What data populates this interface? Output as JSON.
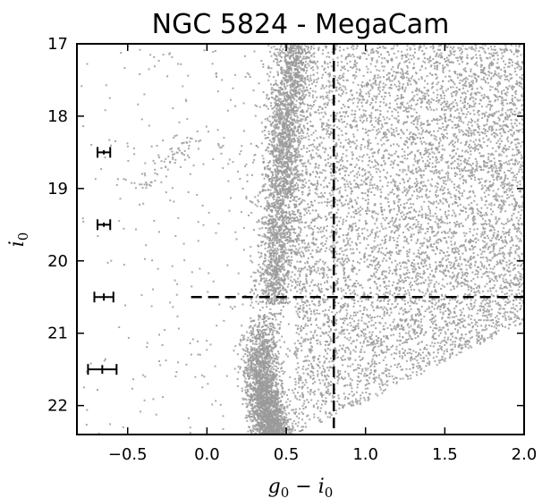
{
  "chart_data": {
    "type": "scatter",
    "title": "NGC 5824 - MegaCam",
    "xlabel": {
      "main": "g",
      "sub1": "0",
      "minus": " − ",
      "main2": "i",
      "sub2": "0"
    },
    "ylabel": {
      "main": "i",
      "sub": "0"
    },
    "xlim": [
      -0.82,
      2.0
    ],
    "ylim": [
      22.4,
      17.0
    ],
    "y_inverted": true,
    "grid": false,
    "x_ticks": [
      {
        "value": -0.5,
        "label": "−0.5"
      },
      {
        "value": 0.0,
        "label": "0.0"
      },
      {
        "value": 0.5,
        "label": "0.5"
      },
      {
        "value": 1.0,
        "label": "1.0"
      },
      {
        "value": 1.5,
        "label": "1.5"
      },
      {
        "value": 2.0,
        "label": "2.0"
      }
    ],
    "y_ticks": [
      {
        "value": 17,
        "label": "17"
      },
      {
        "value": 18,
        "label": "18"
      },
      {
        "value": 19,
        "label": "19"
      },
      {
        "value": 20,
        "label": "20"
      },
      {
        "value": 21,
        "label": "21"
      },
      {
        "value": 22,
        "label": "22"
      }
    ],
    "point_color": "#9a9a9a",
    "guide_lines": [
      {
        "orientation": "vertical",
        "x": 0.8,
        "y_from": 22.4,
        "y_to": 17.0,
        "style": "dashed"
      },
      {
        "orientation": "horizontal",
        "y": 20.5,
        "x_from": -0.1,
        "x_to": 2.0,
        "style": "dashed"
      }
    ],
    "error_bars": [
      {
        "x": -0.65,
        "y": 18.5,
        "x_err": 0.04,
        "y_err": 0.03
      },
      {
        "x": -0.65,
        "y": 19.5,
        "x_err": 0.04,
        "y_err": 0.03
      },
      {
        "x": -0.65,
        "y": 20.5,
        "x_err": 0.06,
        "y_err": 0.05
      },
      {
        "x": -0.66,
        "y": 21.5,
        "x_err": 0.09,
        "y_err": 0.06
      }
    ],
    "point_groups": [
      {
        "name": "",
        "kind": "band",
        "count": 2600,
        "x_center_at_y": [
          [
            17.0,
            0.55
          ],
          [
            18.0,
            0.5
          ],
          [
            19.0,
            0.47
          ],
          [
            20.0,
            0.44
          ],
          [
            20.6,
            0.42
          ]
        ],
        "x_sigma": 0.06,
        "y_range": [
          17.0,
          20.6
        ],
        "y_density": "uniform"
      },
      {
        "name": "",
        "kind": "band",
        "count": 2200,
        "x_center_at_y": [
          [
            20.6,
            0.42
          ],
          [
            21.0,
            0.35
          ],
          [
            21.5,
            0.34
          ],
          [
            22.0,
            0.38
          ],
          [
            22.4,
            0.42
          ]
        ],
        "x_sigma": 0.06,
        "y_range": [
          20.6,
          22.4
        ],
        "y_density": "bottom-heavy"
      },
      {
        "name": "",
        "kind": "field",
        "count": 6500,
        "x_range": [
          0.55,
          2.0
        ],
        "y_range": [
          17.0,
          22.4
        ],
        "lower_boundary": [
          [
            0.55,
            22.4
          ],
          [
            1.0,
            21.95
          ],
          [
            1.5,
            21.4
          ],
          [
            2.0,
            20.85
          ]
        ]
      },
      {
        "name": "",
        "kind": "sparse",
        "count": 330,
        "x_range": [
          -0.8,
          0.45
        ],
        "y_range": [
          17.0,
          22.4
        ]
      },
      {
        "name": "",
        "kind": "branch",
        "count": 70,
        "x_center_at_y": [
          [
            18.2,
            -0.05
          ],
          [
            18.6,
            -0.25
          ],
          [
            19.0,
            -0.4
          ]
        ],
        "x_sigma": 0.05,
        "y_range": [
          18.2,
          19.0
        ],
        "y_density": "uniform"
      }
    ]
  }
}
